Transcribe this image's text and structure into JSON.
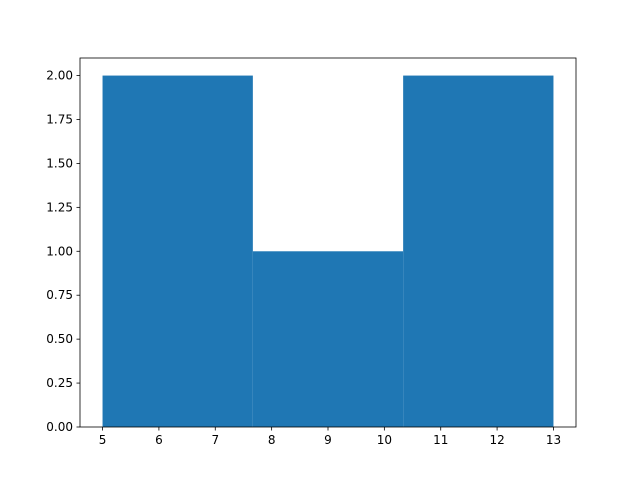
{
  "chart_data": {
    "type": "bar",
    "subtype": "histogram",
    "title": "",
    "xlabel": "",
    "ylabel": "",
    "bin_edges": [
      5,
      7.6667,
      10.3333,
      13
    ],
    "values": [
      2,
      1,
      2
    ],
    "xlim": [
      4.6,
      13.4
    ],
    "ylim": [
      0,
      2.1
    ],
    "xticks": [
      "5",
      "6",
      "7",
      "8",
      "9",
      "10",
      "11",
      "12",
      "13"
    ],
    "yticks": [
      "0.00",
      "0.25",
      "0.50",
      "0.75",
      "1.00",
      "1.25",
      "1.50",
      "1.75",
      "2.00"
    ],
    "grid": false,
    "color": "#1f77b4"
  }
}
